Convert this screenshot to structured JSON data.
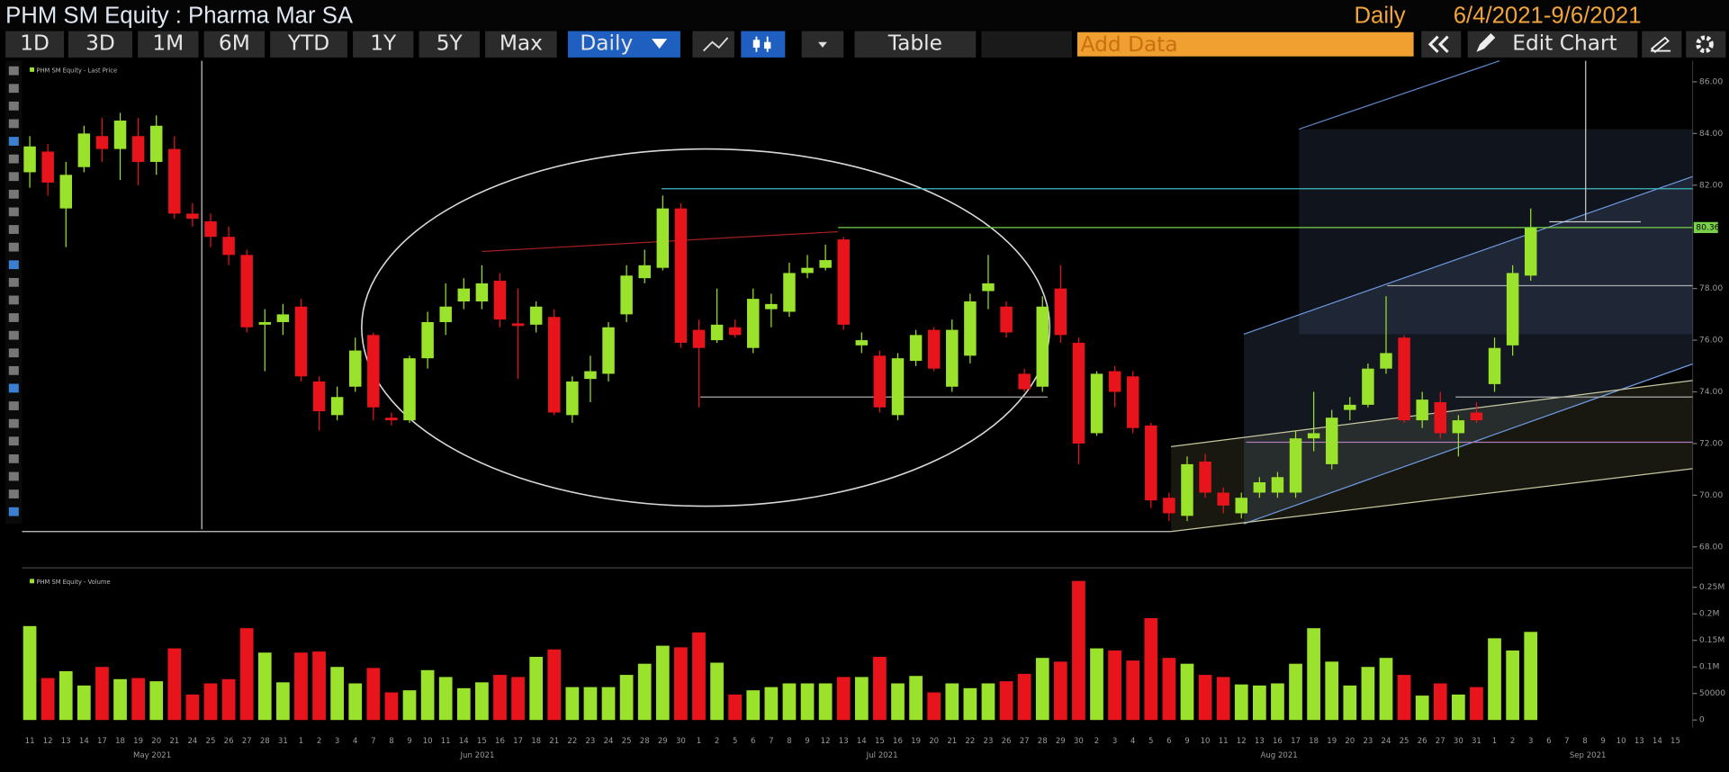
{
  "header": {
    "title": "PHM SM Equity : Pharma Mar SA",
    "period": "Daily",
    "range": "6/4/2021-9/6/2021"
  },
  "toolbar": {
    "periods": [
      "1D",
      "3D",
      "1M",
      "6M",
      "YTD",
      "1Y",
      "5Y",
      "Max"
    ],
    "frequency": "Daily",
    "table": "Table",
    "add_data": "Add Data",
    "edit_chart": "Edit Chart"
  },
  "chart_data": [
    {
      "type": "candlestick",
      "legend": "PHM SM Equity - Last Price",
      "up_color": "#9be22d",
      "down_color": "#e8141c",
      "open": [
        82.5,
        83.3,
        81.1,
        82.7,
        83.9,
        83.4,
        83.9,
        82.9,
        83.4,
        80.9,
        80.6,
        80.0,
        79.3,
        76.6,
        76.7,
        77.3,
        74.4,
        73.1,
        74.2,
        76.2,
        73.0,
        72.9,
        75.3,
        76.7,
        77.5,
        77.5,
        78.3,
        76.65,
        76.6,
        76.9,
        73.1,
        74.5,
        74.7,
        77.0,
        78.4,
        78.8,
        81.1,
        76.4,
        76.0,
        76.5,
        75.7,
        77.2,
        77.1,
        78.6,
        78.8,
        79.9,
        75.8,
        75.4,
        73.1,
        75.2,
        76.4,
        74.2,
        75.4,
        77.9,
        77.3,
        74.7,
        74.2,
        78.0,
        75.9,
        72.4,
        74.8,
        74.6,
        72.7,
        69.9,
        69.2,
        71.3,
        70.1,
        69.3,
        70.1,
        70.1,
        70.1,
        72.2,
        71.2,
        73.3,
        73.5,
        74.9,
        76.1,
        72.9,
        73.6,
        72.4,
        73.2,
        74.3,
        75.8,
        78.5,
        null,
        null,
        null,
        null,
        null,
        null,
        null,
        null
      ],
      "high": [
        83.9,
        83.6,
        82.9,
        84.3,
        84.6,
        84.8,
        84.6,
        84.7,
        83.9,
        81.3,
        80.9,
        80.4,
        79.5,
        77.2,
        77.4,
        77.6,
        74.6,
        74.2,
        76.1,
        76.3,
        73.2,
        75.4,
        77.1,
        78.2,
        78.4,
        78.9,
        78.6,
        78.0,
        77.5,
        77.2,
        74.6,
        75.4,
        76.7,
        78.9,
        79.5,
        81.6,
        81.3,
        76.8,
        78.0,
        76.8,
        78.0,
        77.8,
        79.0,
        79.3,
        79.7,
        80.0,
        76.3,
        75.6,
        75.5,
        76.4,
        76.5,
        76.8,
        77.8,
        79.3,
        77.5,
        74.9,
        77.7,
        78.9,
        76.1,
        74.8,
        75.0,
        74.8,
        72.8,
        70.1,
        71.5,
        71.6,
        70.3,
        70.1,
        70.7,
        70.9,
        72.5,
        74.0,
        73.3,
        73.8,
        75.1,
        77.7,
        76.2,
        74.0,
        74.0,
        73.1,
        73.6,
        76.1,
        78.9,
        81.1,
        null,
        null,
        null,
        null,
        null,
        null,
        null,
        null
      ],
      "low": [
        81.9,
        81.6,
        79.6,
        82.5,
        82.9,
        82.2,
        82.0,
        82.4,
        80.7,
        80.4,
        79.6,
        78.9,
        76.3,
        74.8,
        76.2,
        74.4,
        72.5,
        72.9,
        74.0,
        72.9,
        72.7,
        72.8,
        74.9,
        76.2,
        77.2,
        77.2,
        76.5,
        74.5,
        76.3,
        73.1,
        72.8,
        73.6,
        74.4,
        76.7,
        78.2,
        78.7,
        75.7,
        73.4,
        75.9,
        76.1,
        75.5,
        76.5,
        76.9,
        78.4,
        78.7,
        76.4,
        75.5,
        73.2,
        72.9,
        75.0,
        74.8,
        74.0,
        75.1,
        77.2,
        76.1,
        74.0,
        74.0,
        75.9,
        71.2,
        72.3,
        73.4,
        72.4,
        69.5,
        69.0,
        69.0,
        69.9,
        69.3,
        69.1,
        69.9,
        69.9,
        69.9,
        71.7,
        71.0,
        72.9,
        73.4,
        74.7,
        72.8,
        72.6,
        72.2,
        71.5,
        72.8,
        74.0,
        75.4,
        78.3,
        null,
        null,
        null,
        null,
        null,
        null,
        null,
        null
      ],
      "close": [
        83.5,
        82.1,
        82.4,
        84.0,
        83.4,
        84.5,
        82.9,
        84.3,
        80.9,
        80.7,
        80.0,
        79.3,
        76.5,
        76.7,
        77.0,
        74.6,
        73.25,
        73.8,
        75.6,
        73.4,
        72.9,
        75.3,
        76.7,
        77.3,
        78.0,
        78.2,
        76.8,
        76.55,
        77.3,
        73.2,
        74.4,
        74.8,
        76.5,
        78.5,
        78.9,
        81.1,
        75.9,
        75.7,
        76.6,
        76.2,
        77.6,
        77.4,
        78.6,
        78.8,
        79.1,
        76.6,
        76.0,
        73.4,
        75.3,
        76.2,
        74.9,
        76.4,
        77.5,
        78.2,
        76.3,
        74.1,
        77.3,
        76.2,
        72.0,
        74.7,
        74.0,
        72.6,
        69.8,
        69.3,
        71.2,
        70.1,
        69.6,
        69.9,
        70.5,
        70.7,
        72.2,
        72.4,
        73.0,
        73.5,
        74.9,
        75.5,
        72.9,
        73.7,
        72.4,
        72.9,
        72.9,
        75.7,
        78.6,
        80.36,
        null,
        null,
        null,
        null,
        null,
        null,
        null,
        null
      ],
      "last_price": 80.36,
      "ylim": [
        67.4,
        86.6
      ],
      "yticks": [
        {
          "value": 68,
          "label": "68.00"
        },
        {
          "value": 70,
          "label": "70.00"
        },
        {
          "value": 72,
          "label": "72.00"
        },
        {
          "value": 74,
          "label": "74.00"
        },
        {
          "value": 76,
          "label": "76.00"
        },
        {
          "value": 78,
          "label": "78.00"
        },
        {
          "value": 82,
          "label": "82.00"
        },
        {
          "value": 84,
          "label": "84.00"
        },
        {
          "value": 86,
          "label": "86.00"
        }
      ]
    },
    {
      "type": "bar",
      "legend": "PHM SM Equity - Volume",
      "categories": [
        "11",
        "12",
        "13",
        "14",
        "17",
        "18",
        "19",
        "20",
        "21",
        "24",
        "25",
        "26",
        "27",
        "28",
        "31",
        "1",
        "2",
        "3",
        "4",
        "7",
        "8",
        "9",
        "10",
        "11",
        "14",
        "15",
        "16",
        "17",
        "18",
        "21",
        "22",
        "23",
        "24",
        "25",
        "28",
        "29",
        "30",
        "1",
        "2",
        "5",
        "6",
        "7",
        "8",
        "9",
        "12",
        "13",
        "14",
        "15",
        "16",
        "19",
        "20",
        "21",
        "22",
        "23",
        "26",
        "27",
        "28",
        "29",
        "30",
        "2",
        "3",
        "4",
        "5",
        "6",
        "9",
        "10",
        "11",
        "12",
        "13",
        "16",
        "17",
        "18",
        "19",
        "20",
        "23",
        "24",
        "25",
        "26",
        "27",
        "30",
        "31",
        "1",
        "2",
        "3",
        "6",
        "7",
        "8",
        "9",
        "10",
        "13",
        "14",
        "15"
      ],
      "month_labels": [
        "May 2021",
        "Jun 2021",
        "Jul 2021",
        "Aug 2021",
        "Sep 2021"
      ],
      "values": [
        177000,
        79000,
        92000,
        65000,
        100000,
        77000,
        79000,
        73000,
        135000,
        48000,
        69000,
        77000,
        173000,
        127000,
        71000,
        127000,
        129000,
        100000,
        69000,
        98000,
        52000,
        56000,
        94000,
        81000,
        60000,
        71000,
        85000,
        81000,
        119000,
        133000,
        62000,
        62000,
        62000,
        85000,
        106000,
        140000,
        137000,
        165000,
        108000,
        48000,
        56000,
        62000,
        69000,
        69000,
        69000,
        81000,
        81000,
        119000,
        69000,
        83000,
        52000,
        69000,
        60000,
        69000,
        73000,
        87000,
        117000,
        110000,
        262000,
        135000,
        131000,
        112000,
        192000,
        117000,
        106000,
        85000,
        81000,
        67000,
        65000,
        69000,
        106000,
        173000,
        110000,
        65000,
        100000,
        117000,
        85000,
        46000,
        69000,
        48000,
        62000,
        154000,
        131000,
        166000,
        null,
        null,
        null,
        null,
        null,
        null,
        null,
        null
      ],
      "ylim": [
        0,
        270000
      ],
      "yticks": [
        0,
        50000,
        {
          "value": 100000,
          "label": "0.1M"
        },
        {
          "value": 150000,
          "label": "0.15M"
        },
        {
          "value": 200000,
          "label": "0.2M"
        },
        {
          "value": 250000,
          "label": "0.25M"
        }
      ]
    }
  ]
}
